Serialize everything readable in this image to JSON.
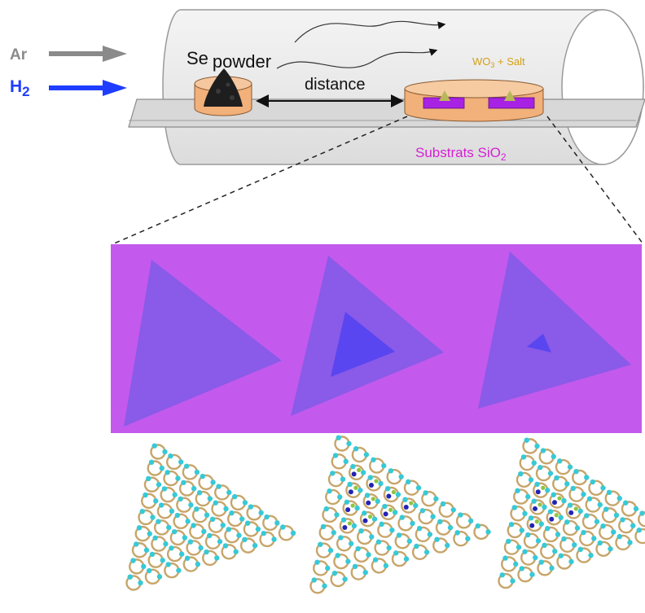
{
  "gases": {
    "ar": "Ar",
    "h2_main": "H",
    "h2_sub": "2"
  },
  "furnace": {
    "source_label": "Se powder",
    "source_label_se": "Se",
    "source_label_powder": "powder",
    "distance_label": "distance",
    "precursor_main": "WO",
    "precursor_sub": "3",
    "precursor_rest": " + Salt",
    "substrate_main": "Substrats SiO",
    "substrate_sub": "2"
  },
  "colors": {
    "ar_arrow": "#8a8a8a",
    "h2_arrow": "#1f3dff",
    "precursor_text": "#d4a017",
    "substrate_text": "#d51fd5",
    "optical_bg": "#c35aed",
    "flake": "#8a5ae8",
    "core": "#5a46f0",
    "atom_w": "#38c9d6",
    "atom_se": "#c7a56a",
    "atom_s": "#8fc441",
    "atom_core": "#2323b5"
  },
  "flakes": [
    {
      "name": "flake-uniform"
    },
    {
      "name": "flake-large-core"
    },
    {
      "name": "flake-small-core"
    }
  ],
  "lattices": [
    {
      "name": "lattice-uniform"
    },
    {
      "name": "lattice-large-core"
    },
    {
      "name": "lattice-small-core"
    }
  ]
}
